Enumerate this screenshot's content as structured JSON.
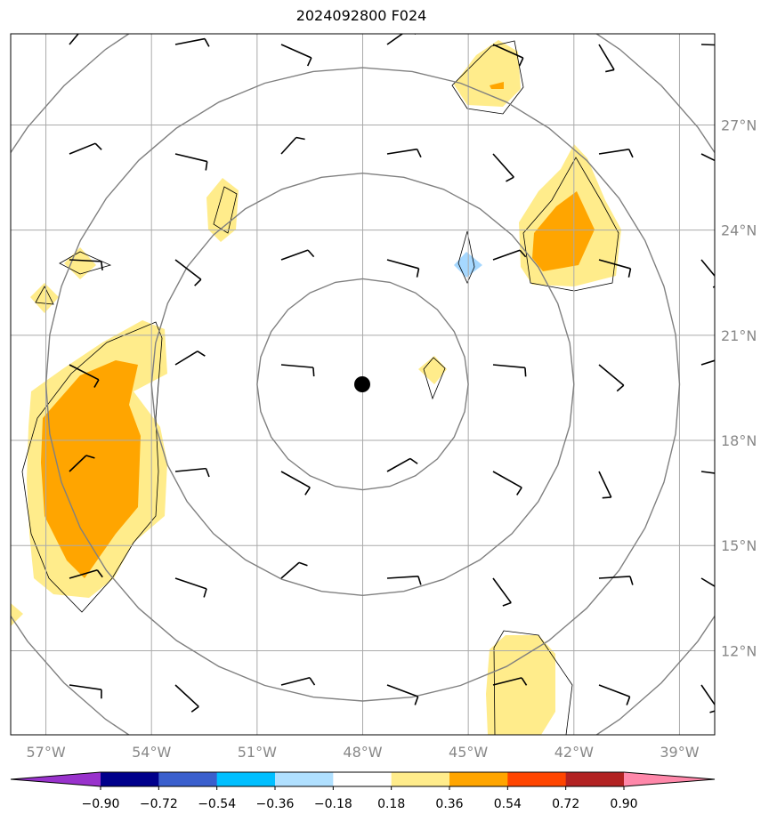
{
  "title": "2024092800 F024",
  "map": {
    "lon_range": [
      -58,
      -38
    ],
    "lat_range": [
      9.6,
      29.6
    ],
    "center": {
      "lon": -48.0,
      "lat": 19.6
    },
    "lon_ticks": [
      "57°W",
      "54°W",
      "51°W",
      "48°W",
      "45°W",
      "42°W",
      "39°W"
    ],
    "lat_ticks": [
      "27°N",
      "24°N",
      "21°N",
      "18°N",
      "15°N",
      "12°N"
    ],
    "lon_tick_values": [
      -57,
      -54,
      -51,
      -48,
      -45,
      -42,
      -39
    ],
    "lat_tick_values": [
      27,
      24,
      21,
      18,
      15,
      12
    ],
    "range_ring_radii_deg": [
      3,
      6,
      9,
      12
    ],
    "colors": {
      "light_yellow": "#ffec8b",
      "orange": "#ffa500",
      "light_blue": "#a6d8ff",
      "ring": "#808080",
      "grid": "#aaaaaa"
    }
  },
  "colorbar": {
    "labels": [
      "−0.90",
      "−0.72",
      "−0.54",
      "−0.36",
      "−0.18",
      "0.18",
      "0.36",
      "0.54",
      "0.72",
      "0.90"
    ],
    "colors": [
      "#9932cc",
      "#00008b",
      "#3a5fcd",
      "#00bfff",
      "#b0e0ff",
      "#ffffff",
      "#ffec8b",
      "#ffa500",
      "#ff4500",
      "#b22222",
      "#ff88aa"
    ],
    "under_color": "#9932cc",
    "over_color": "#ff88aa"
  }
}
